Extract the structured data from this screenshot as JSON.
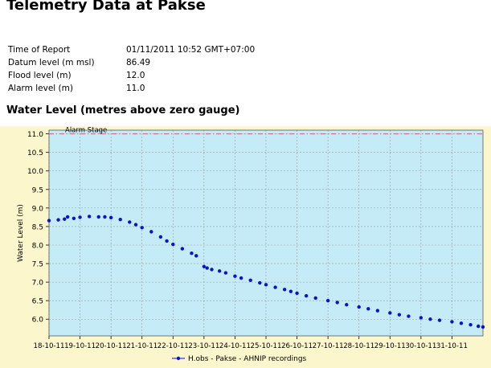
{
  "header": {
    "title": "Telemetry Data at Pakse"
  },
  "report": {
    "rows": [
      {
        "label": "Time of Report",
        "value": "01/11/2011 10:52 GMT+07:00"
      },
      {
        "label": "Datum level (m msl)",
        "value": "86.49"
      },
      {
        "label": "Flood level (m)",
        "value": "12.0"
      },
      {
        "label": "Alarm level (m)",
        "value": "11.0"
      }
    ]
  },
  "section": {
    "title": "Water Level (metres above zero gauge)"
  },
  "colors": {
    "plot_bg": "#c5ecf6",
    "panel_bg": "#fbf6cc",
    "series": "#0a13c8",
    "alarm_line": "#c0608a",
    "grid": "#9a9a9a"
  },
  "chart_data": {
    "type": "scatter",
    "title": "",
    "xlabel": "",
    "ylabel": "Water Level (m)",
    "x_categories": [
      "18-10-11",
      "19-10-11",
      "20-10-11",
      "21-10-11",
      "22-10-11",
      "23-10-11",
      "24-10-11",
      "25-10-11",
      "26-10-11",
      "27-10-11",
      "28-10-11",
      "29-10-11",
      "30-10-11",
      "31-10-11"
    ],
    "x_range_days": [
      0,
      14.0
    ],
    "ylim": [
      5.55,
      11.1
    ],
    "y_ticks": [
      6.0,
      6.5,
      7.0,
      7.5,
      8.0,
      8.5,
      9.0,
      9.5,
      10.0,
      10.5,
      11.0
    ],
    "grid": true,
    "legend_position": "bottom-center",
    "annotations": [
      {
        "text": "Alarm Stage",
        "y": 11.0
      }
    ],
    "reference_lines": [
      {
        "name": "Alarm Stage",
        "y": 11.0
      }
    ],
    "series": [
      {
        "name": "H.obs - Pakse - AHNIP recordings",
        "points": [
          [
            0.0,
            8.66
          ],
          [
            0.3,
            8.68
          ],
          [
            0.5,
            8.7
          ],
          [
            0.6,
            8.76
          ],
          [
            0.8,
            8.72
          ],
          [
            1.0,
            8.75
          ],
          [
            1.3,
            8.77
          ],
          [
            1.6,
            8.76
          ],
          [
            1.8,
            8.76
          ],
          [
            2.0,
            8.74
          ],
          [
            2.3,
            8.69
          ],
          [
            2.6,
            8.62
          ],
          [
            2.8,
            8.55
          ],
          [
            3.0,
            8.47
          ],
          [
            3.3,
            8.36
          ],
          [
            3.6,
            8.22
          ],
          [
            3.8,
            8.11
          ],
          [
            4.0,
            8.02
          ],
          [
            4.3,
            7.9
          ],
          [
            4.6,
            7.78
          ],
          [
            4.75,
            7.71
          ],
          [
            5.0,
            7.42
          ],
          [
            5.1,
            7.38
          ],
          [
            5.25,
            7.34
          ],
          [
            5.5,
            7.3
          ],
          [
            5.7,
            7.25
          ],
          [
            6.0,
            7.16
          ],
          [
            6.2,
            7.11
          ],
          [
            6.5,
            7.05
          ],
          [
            6.8,
            6.98
          ],
          [
            7.0,
            6.93
          ],
          [
            7.3,
            6.86
          ],
          [
            7.6,
            6.8
          ],
          [
            7.8,
            6.75
          ],
          [
            8.0,
            6.7
          ],
          [
            8.3,
            6.63
          ],
          [
            8.6,
            6.57
          ],
          [
            9.0,
            6.5
          ],
          [
            9.3,
            6.45
          ],
          [
            9.6,
            6.39
          ],
          [
            10.0,
            6.33
          ],
          [
            10.3,
            6.28
          ],
          [
            10.6,
            6.23
          ],
          [
            11.0,
            6.17
          ],
          [
            11.3,
            6.12
          ],
          [
            11.6,
            6.08
          ],
          [
            12.0,
            6.04
          ],
          [
            12.3,
            6.0
          ],
          [
            12.6,
            5.97
          ],
          [
            13.0,
            5.93
          ],
          [
            13.3,
            5.89
          ],
          [
            13.6,
            5.85
          ],
          [
            13.85,
            5.81
          ],
          [
            14.0,
            5.79
          ]
        ]
      }
    ]
  }
}
